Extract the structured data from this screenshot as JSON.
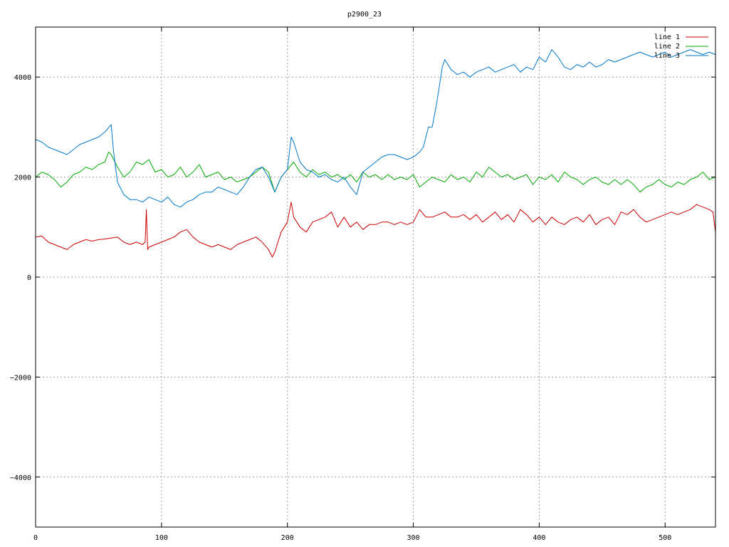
{
  "chart_data": {
    "type": "line",
    "title": "p2900_23",
    "xlabel": "",
    "ylabel": "",
    "xlim": [
      0,
      540
    ],
    "ylim": [
      -5000,
      5000
    ],
    "xticks": [
      0,
      100,
      200,
      300,
      400,
      500
    ],
    "yticks": [
      -4000,
      -2000,
      0,
      2000,
      4000
    ],
    "grid": true,
    "legend": "top-right",
    "series": [
      {
        "name": "line 1",
        "color": "#cc0000",
        "x": [
          0,
          5,
          10,
          15,
          20,
          25,
          30,
          35,
          40,
          45,
          50,
          55,
          60,
          65,
          70,
          75,
          80,
          85,
          87,
          88,
          89,
          90,
          95,
          100,
          105,
          110,
          115,
          120,
          125,
          130,
          135,
          140,
          145,
          150,
          155,
          160,
          165,
          170,
          175,
          180,
          185,
          188,
          190,
          195,
          200,
          203,
          205,
          210,
          215,
          220,
          225,
          230,
          235,
          240,
          245,
          250,
          255,
          260,
          265,
          270,
          275,
          280,
          285,
          290,
          295,
          300,
          305,
          310,
          315,
          320,
          325,
          330,
          335,
          340,
          345,
          350,
          355,
          360,
          365,
          370,
          375,
          380,
          385,
          390,
          395,
          400,
          405,
          410,
          415,
          420,
          425,
          430,
          435,
          440,
          445,
          450,
          455,
          460,
          465,
          470,
          475,
          480,
          485,
          490,
          495,
          500,
          505,
          510,
          515,
          520,
          525,
          530,
          535,
          538,
          540
        ],
        "values": [
          800,
          820,
          700,
          650,
          600,
          550,
          650,
          700,
          750,
          720,
          750,
          760,
          780,
          800,
          700,
          650,
          700,
          650,
          700,
          1350,
          550,
          600,
          650,
          700,
          750,
          800,
          900,
          950,
          800,
          700,
          650,
          600,
          650,
          600,
          550,
          650,
          700,
          750,
          800,
          700,
          550,
          400,
          500,
          900,
          1100,
          1500,
          1200,
          1000,
          900,
          1100,
          1150,
          1200,
          1300,
          1000,
          1200,
          1000,
          1100,
          950,
          1050,
          1050,
          1100,
          1100,
          1050,
          1100,
          1050,
          1100,
          1350,
          1200,
          1200,
          1250,
          1300,
          1200,
          1200,
          1250,
          1150,
          1250,
          1100,
          1200,
          1300,
          1150,
          1250,
          1100,
          1350,
          1250,
          1100,
          1200,
          1050,
          1200,
          1100,
          1050,
          1150,
          1200,
          1100,
          1250,
          1050,
          1150,
          1200,
          1050,
          1300,
          1250,
          1350,
          1200,
          1100,
          1150,
          1200,
          1250,
          1300,
          1250,
          1300,
          1350,
          1450,
          1400,
          1350,
          1300,
          900
        ]
      },
      {
        "name": "line 2",
        "color": "#00aa00",
        "x": [
          0,
          5,
          10,
          15,
          20,
          25,
          30,
          35,
          40,
          45,
          50,
          55,
          58,
          60,
          65,
          70,
          75,
          80,
          85,
          90,
          95,
          100,
          105,
          110,
          115,
          120,
          125,
          130,
          135,
          140,
          145,
          150,
          155,
          160,
          165,
          170,
          175,
          180,
          185,
          190,
          195,
          200,
          205,
          210,
          215,
          220,
          225,
          230,
          235,
          240,
          245,
          250,
          255,
          260,
          265,
          270,
          275,
          280,
          285,
          290,
          295,
          300,
          305,
          310,
          315,
          320,
          325,
          330,
          335,
          340,
          345,
          350,
          355,
          360,
          365,
          370,
          375,
          380,
          385,
          390,
          395,
          400,
          405,
          410,
          415,
          420,
          425,
          430,
          435,
          440,
          445,
          450,
          455,
          460,
          465,
          470,
          475,
          480,
          485,
          490,
          495,
          500,
          505,
          510,
          515,
          520,
          525,
          530,
          535,
          540
        ],
        "values": [
          2000,
          2100,
          2050,
          1950,
          1800,
          1900,
          2050,
          2100,
          2200,
          2150,
          2250,
          2300,
          2500,
          2450,
          2200,
          2000,
          2100,
          2300,
          2250,
          2350,
          2100,
          2150,
          2000,
          2050,
          2200,
          2000,
          2100,
          2250,
          2000,
          2050,
          2100,
          1950,
          2000,
          1900,
          1950,
          2000,
          2100,
          2200,
          2100,
          1700,
          2000,
          2150,
          2300,
          2100,
          2000,
          2150,
          2050,
          2100,
          2000,
          2050,
          1950,
          2050,
          1900,
          2100,
          2000,
          2050,
          1950,
          2050,
          1950,
          2000,
          1950,
          2050,
          1800,
          1900,
          2000,
          1950,
          1900,
          2050,
          1950,
          2000,
          1900,
          2100,
          2000,
          2200,
          2100,
          2000,
          2050,
          1950,
          2000,
          2050,
          1850,
          2000,
          1950,
          2050,
          1900,
          2100,
          2000,
          1950,
          1850,
          1950,
          2000,
          1900,
          1850,
          1950,
          1850,
          1950,
          1850,
          1700,
          1800,
          1850,
          1950,
          1850,
          1800,
          1900,
          1850,
          1950,
          2000,
          2100,
          1950,
          2000
        ]
      },
      {
        "name": "line 3",
        "color": "#0077cc",
        "x": [
          0,
          5,
          10,
          15,
          20,
          25,
          30,
          35,
          40,
          45,
          50,
          55,
          60,
          62,
          65,
          70,
          75,
          80,
          85,
          90,
          95,
          100,
          105,
          110,
          115,
          120,
          125,
          130,
          135,
          140,
          145,
          150,
          155,
          160,
          165,
          170,
          175,
          180,
          185,
          190,
          195,
          200,
          203,
          205,
          210,
          215,
          220,
          225,
          230,
          235,
          240,
          245,
          250,
          255,
          260,
          265,
          270,
          275,
          280,
          285,
          290,
          295,
          300,
          305,
          308,
          312,
          315,
          318,
          320,
          323,
          325,
          330,
          335,
          340,
          345,
          350,
          355,
          360,
          365,
          370,
          375,
          380,
          385,
          390,
          395,
          400,
          405,
          410,
          415,
          420,
          425,
          430,
          435,
          440,
          445,
          450,
          455,
          460,
          465,
          470,
          475,
          480,
          485,
          490,
          495,
          500,
          505,
          510,
          515,
          520,
          525,
          530,
          535,
          540
        ],
        "values": [
          2750,
          2700,
          2600,
          2550,
          2500,
          2450,
          2550,
          2650,
          2700,
          2750,
          2800,
          2900,
          3050,
          2500,
          1900,
          1650,
          1550,
          1550,
          1500,
          1600,
          1550,
          1500,
          1600,
          1450,
          1400,
          1500,
          1550,
          1650,
          1700,
          1700,
          1800,
          1750,
          1700,
          1650,
          1800,
          2000,
          2150,
          2200,
          2000,
          1700,
          2000,
          2150,
          2800,
          2700,
          2300,
          2150,
          2100,
          2000,
          2050,
          1950,
          1900,
          2000,
          1800,
          1650,
          2100,
          2200,
          2300,
          2400,
          2450,
          2450,
          2400,
          2350,
          2400,
          2500,
          2600,
          3000,
          3000,
          3400,
          3700,
          4200,
          4350,
          4150,
          4050,
          4100,
          4000,
          4100,
          4150,
          4200,
          4100,
          4150,
          4200,
          4250,
          4100,
          4200,
          4150,
          4400,
          4300,
          4550,
          4400,
          4200,
          4150,
          4250,
          4200,
          4300,
          4200,
          4250,
          4350,
          4300,
          4350,
          4400,
          4450,
          4500,
          4450,
          4400,
          4450,
          4500,
          4400,
          4450,
          4500,
          4550,
          4500,
          4450,
          4500,
          4450
        ]
      }
    ]
  }
}
